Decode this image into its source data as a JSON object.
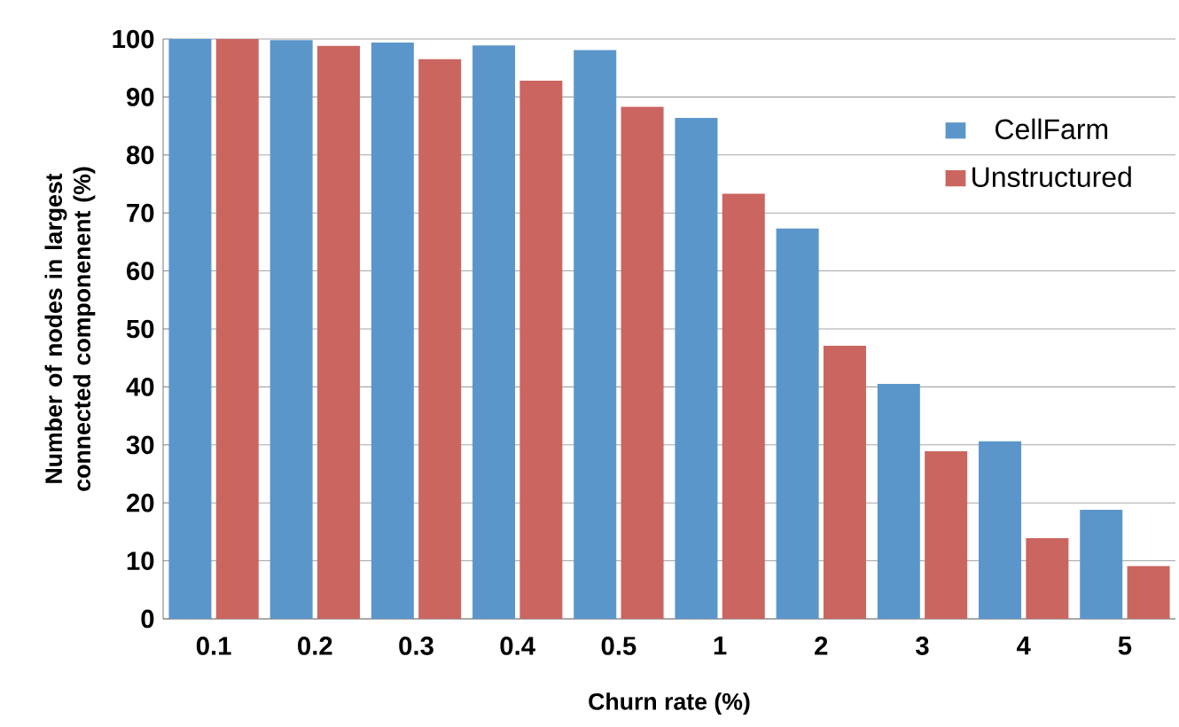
{
  "chart_data": {
    "type": "bar",
    "xlabel": "Churn rate (%)",
    "ylabel": "Number of nodes in largest connected componenent (%)",
    "categories": [
      "0.1",
      "0.2",
      "0.3",
      "0.4",
      "0.5",
      "1",
      "2",
      "3",
      "4",
      "5"
    ],
    "series": [
      {
        "name": "CellFarm",
        "color": "#5b96cb",
        "values": [
          100,
          99.8,
          99.4,
          98.9,
          98.1,
          86.4,
          67.3,
          40.5,
          30.6,
          18.8
        ]
      },
      {
        "name": "Unstructured",
        "color": "#ca6560",
        "values": [
          100,
          98.8,
          96.5,
          92.8,
          88.3,
          73.3,
          47.1,
          28.9,
          13.9,
          9.1
        ]
      }
    ],
    "ylim": [
      0,
      100
    ],
    "yticks": [
      0,
      10,
      20,
      30,
      40,
      50,
      60,
      70,
      80,
      90,
      100
    ],
    "grid": "y",
    "legend": "top right"
  }
}
